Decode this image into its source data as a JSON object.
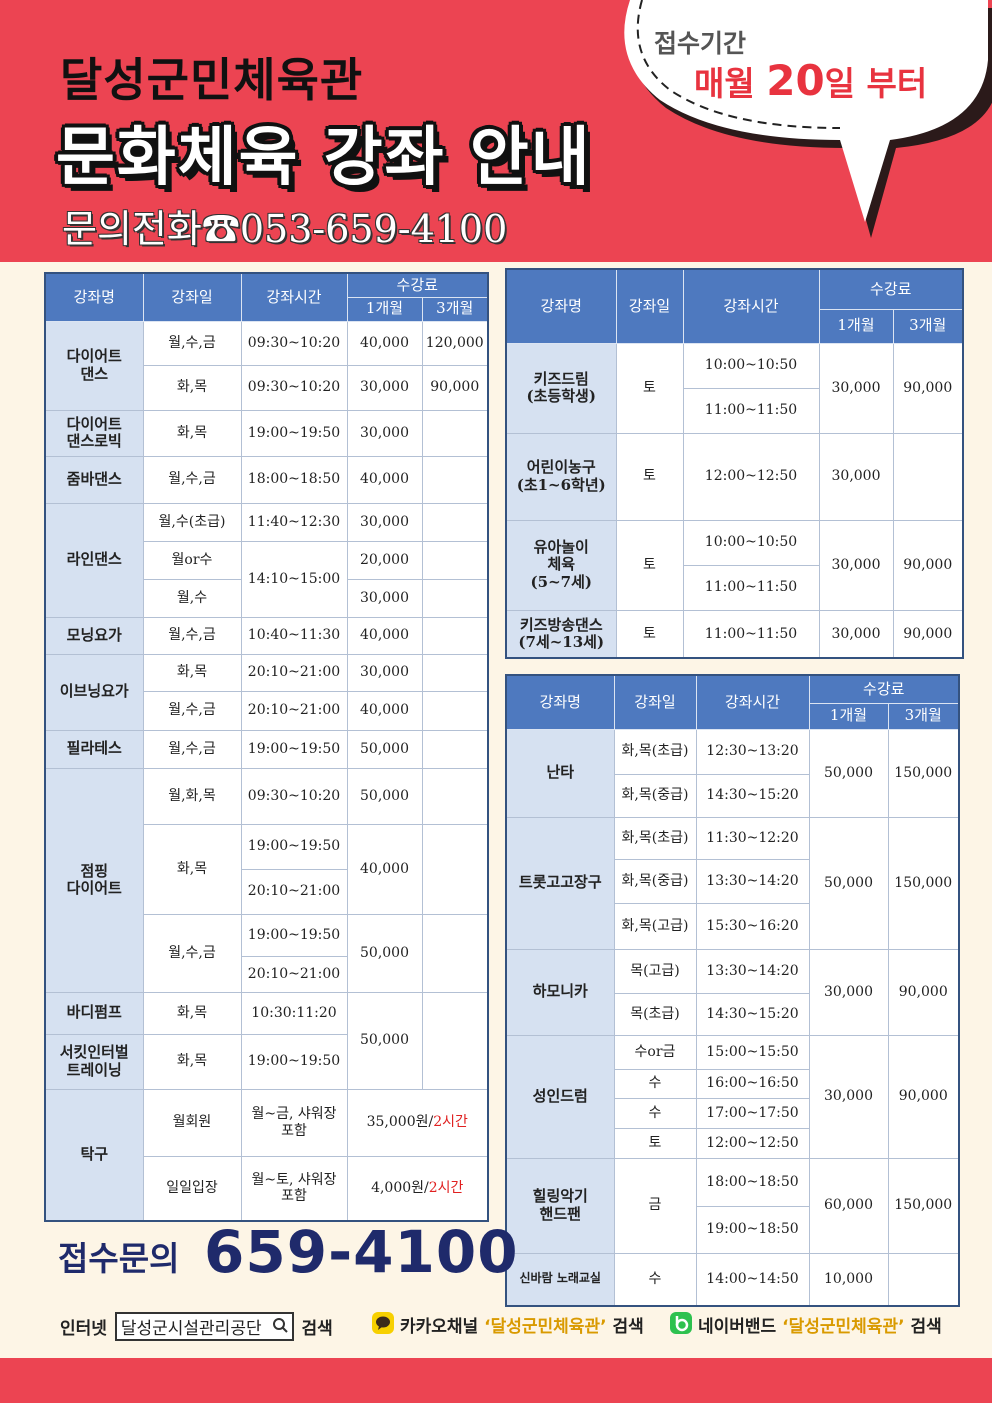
{
  "header": {
    "org": "달성군민체육관",
    "title": "문화체육 강좌 안내",
    "phone": "문의전화☎053-659-4100"
  },
  "bubble": {
    "label": "접수기간",
    "before": "매월 ",
    "day": "20",
    "after": "일 부터"
  },
  "left_table": {
    "headers": {
      "name": "강좌명",
      "day": "강좌일",
      "time": "강좌시간",
      "fee": "수강료",
      "month1": "1개월",
      "month3": "3개월"
    },
    "rows": [
      [
        "다이어트\n댄스",
        "월,수,금",
        "09:30~10:20",
        "40,000",
        "120,000"
      ],
      [
        "화,목",
        "09:30~10:20",
        "30,000",
        "90,000"
      ],
      [
        "다이어트\n댄스로빅",
        "화,목",
        "19:00~19:50",
        "30,000"
      ],
      [
        "줌바댄스",
        "월,수,금",
        "18:00~18:50",
        "40,000"
      ],
      [
        "라인댄스",
        "월,수(초급)",
        "11:40~12:30",
        "30,000"
      ],
      [
        "월or수",
        "14:10~15:00",
        "20,000"
      ],
      [
        "월,수",
        "30,000"
      ],
      [
        "모닝요가",
        "월,수,금",
        "10:40~11:30",
        "40,000"
      ],
      [
        "이브닝요가",
        "화,목",
        "20:10~21:00",
        "30,000"
      ],
      [
        "월,수,금",
        "20:10~21:00",
        "40,000"
      ],
      [
        "필라테스",
        "월,수,금",
        "19:00~19:50",
        "50,000"
      ],
      [
        "점핑\n다이어트",
        "월,화,목",
        "09:30~10:20",
        "50,000"
      ],
      [
        "화,목",
        "19:00~19:50",
        "40,000"
      ],
      [
        "20:10~21:00"
      ],
      [
        "월,수,금",
        "19:00~19:50",
        "50,000"
      ],
      [
        "20:10~21:00"
      ],
      [
        "바디펌프",
        "화,목",
        "10:30:11:20",
        "50,000"
      ],
      [
        "서킷인터벌\n트레이닝",
        "화,목",
        "19:00~19:50"
      ],
      [
        "탁구",
        "월회원",
        "월~금, 샤워장\n포함",
        {
          "price": "35,000원/",
          "duration": "2시간"
        }
      ],
      [
        "일일입장",
        "월~토, 샤워장\n포함",
        {
          "price": "4,000원/",
          "duration": "2시간"
        }
      ]
    ]
  },
  "kids_table": {
    "headers": {
      "name": "강좌명",
      "day": "강좌일",
      "time": "강좌시간",
      "fee": "수강료",
      "month1": "1개월",
      "month3": "3개월"
    },
    "rows": [
      [
        "키즈드림\n(초등학생)",
        "토",
        "10:00~10:50",
        "30,000",
        "90,000"
      ],
      [
        "11:00~11:50"
      ],
      [
        "어린이농구\n(초1~6학년)",
        "토",
        "12:00~12:50",
        "30,000"
      ],
      [
        "유아놀이\n체육\n(5~7세)",
        "토",
        "10:00~10:50",
        "30,000",
        "90,000"
      ],
      [
        "11:00~11:50"
      ],
      [
        "키즈방송댄스\n(7세~13세)",
        "토",
        "11:00~11:50",
        "30,000",
        "90,000"
      ]
    ]
  },
  "culture_table": {
    "headers": {
      "name": "강좌명",
      "day": "강좌일",
      "time": "강좌시간",
      "fee": "수강료",
      "month1": "1개월",
      "month3": "3개월"
    },
    "rows": [
      [
        "난타",
        "화,목(초급)",
        "12:30~13:20",
        "50,000",
        "150,000"
      ],
      [
        "화,목(중급)",
        "14:30~15:20"
      ],
      [
        "트롯고고장구",
        "화,목(초급)",
        "11:30~12:20",
        "50,000",
        "150,000"
      ],
      [
        "화,목(중급)",
        "13:30~14:20"
      ],
      [
        "화,목(고급)",
        "15:30~16:20"
      ],
      [
        "하모니카",
        "목(고급)",
        "13:30~14:20",
        "30,000",
        "90,000"
      ],
      [
        "목(초급)",
        "14:30~15:20"
      ],
      [
        "성인드럼",
        "수or금",
        "15:00~15:50",
        "30,000",
        "90,000"
      ],
      [
        "수",
        "16:00~16:50"
      ],
      [
        "수",
        "17:00~17:50"
      ],
      [
        "토",
        "12:00~12:50"
      ],
      [
        "힐링악기\n핸드팬",
        "금",
        "18:00~18:50",
        "60,000",
        "150,000"
      ],
      [
        "19:00~18:50"
      ],
      [
        "신바람 노래교실",
        "수",
        "14:00~14:50",
        "10,000"
      ]
    ]
  },
  "contact": {
    "label": "접수문의",
    "number": "659-4100"
  },
  "footer": {
    "internet": {
      "label": "인터넷",
      "query": "달성군시설관리공단",
      "action": "검색"
    },
    "kakao": {
      "label": "카카오채널 ",
      "query": "‘달성군민체육관’",
      "action": " 검색"
    },
    "band": {
      "label": "네이버밴드 ",
      "query": "‘달성군민체육관’",
      "action": " 검색"
    }
  }
}
